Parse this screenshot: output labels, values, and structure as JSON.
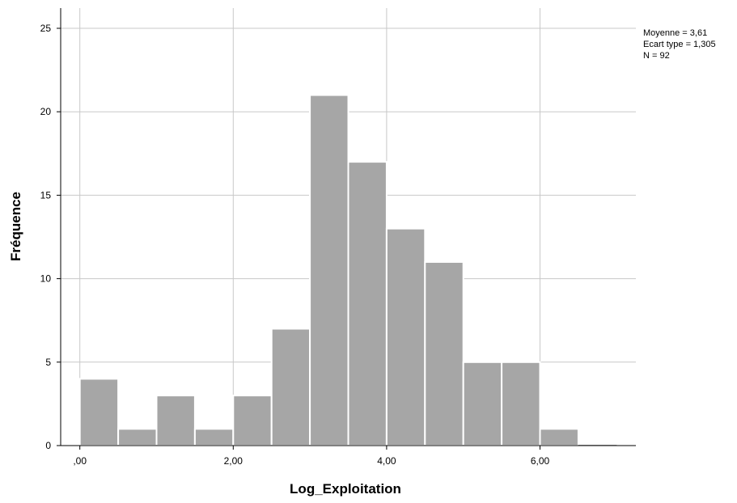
{
  "chart_data": {
    "type": "bar",
    "subtype": "histogram",
    "xlabel": "Log_Exploitation",
    "ylabel": "Fréquence",
    "xlim": [
      -0.25,
      7.25
    ],
    "ylim": [
      0,
      25
    ],
    "bin_width": 0.5,
    "bins": [
      {
        "x0": 0.0,
        "x1": 0.5,
        "count": 4
      },
      {
        "x0": 0.5,
        "x1": 1.0,
        "count": 1
      },
      {
        "x0": 1.0,
        "x1": 1.5,
        "count": 3
      },
      {
        "x0": 1.5,
        "x1": 2.0,
        "count": 1
      },
      {
        "x0": 2.0,
        "x1": 2.5,
        "count": 3
      },
      {
        "x0": 2.5,
        "x1": 3.0,
        "count": 7
      },
      {
        "x0": 3.0,
        "x1": 3.5,
        "count": 21
      },
      {
        "x0": 3.5,
        "x1": 4.0,
        "count": 17
      },
      {
        "x0": 4.0,
        "x1": 4.5,
        "count": 13
      },
      {
        "x0": 4.5,
        "x1": 5.0,
        "count": 11
      },
      {
        "x0": 5.0,
        "x1": 5.5,
        "count": 5
      },
      {
        "x0": 5.5,
        "x1": 6.0,
        "count": 5
      },
      {
        "x0": 6.0,
        "x1": 6.5,
        "count": 1
      },
      {
        "x0": 6.5,
        "x1": 7.0,
        "count": 0
      }
    ],
    "x_ticks": [
      {
        "value": 0,
        "label": ",00"
      },
      {
        "value": 2,
        "label": "2,00"
      },
      {
        "value": 4,
        "label": "4,00"
      },
      {
        "value": 6,
        "label": "6,00"
      }
    ],
    "y_ticks": [
      {
        "value": 0,
        "label": "0"
      },
      {
        "value": 5,
        "label": "5"
      },
      {
        "value": 10,
        "label": "10"
      },
      {
        "value": 15,
        "label": "15"
      },
      {
        "value": 20,
        "label": "20"
      },
      {
        "value": 25,
        "label": "25"
      }
    ],
    "grid": true,
    "legend_placement": "top-right",
    "stats": {
      "mean": "Moyenne = 3,61",
      "std": "Ecart type = 1,305",
      "n": "N = 92"
    },
    "colors": {
      "bar": "#a6a6a6",
      "bar_edge": "#ffffff",
      "grid": "#c8c8c8",
      "axis": "#000000"
    }
  }
}
